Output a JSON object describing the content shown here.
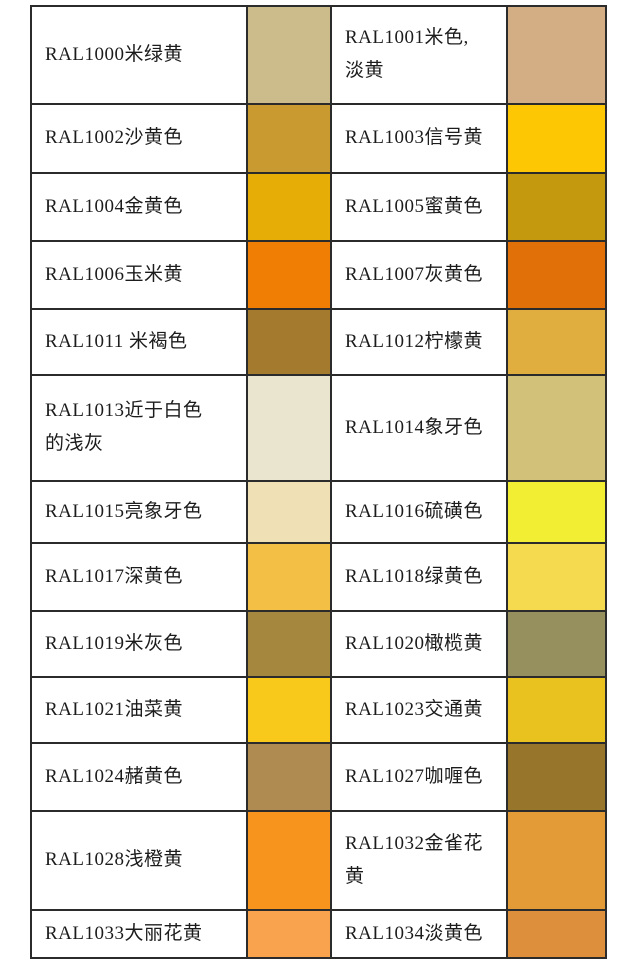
{
  "table": {
    "description_rows": [
      {
        "left_label": "RAL1000米绿黄",
        "left_color": "#CDBC8B",
        "right_label": "RAL1001米色,\n淡黄",
        "right_color": "#D3AE84"
      },
      {
        "left_label": "RAL1002沙黄色",
        "left_color": "#C89A2F",
        "right_label": "RAL1003信号黄",
        "right_color": "#FDC704"
      },
      {
        "left_label": "RAL1004金黄色",
        "left_color": "#E7AD07",
        "right_label": "RAL1005蜜黄色",
        "right_color": "#C5990D"
      },
      {
        "left_label": "RAL1006玉米黄",
        "left_color": "#F07E04",
        "right_label": "RAL1007灰黄色",
        "right_color": "#E17008"
      },
      {
        "left_label": "RAL1011 米褐色",
        "left_color": "#A47B2E",
        "right_label": "RAL1012柠檬黄",
        "right_color": "#DFAE3E"
      },
      {
        "left_label": "RAL1013近于白色\n的浅灰",
        "left_color": "#E9E5CF",
        "right_label": "RAL1014象牙色",
        "right_color": "#D2C178"
      },
      {
        "left_label": "RAL1015亮象牙色",
        "left_color": "#EFE0B5",
        "right_label": "RAL1016硫磺色",
        "right_color": "#F2EE33"
      },
      {
        "left_label": "RAL1017深黄色",
        "left_color": "#F3BF45",
        "right_label": "RAL1018绿黄色",
        "right_color": "#F5D94F"
      },
      {
        "left_label": "RAL1019米灰色",
        "left_color": "#A5883E",
        "right_label": "RAL1020橄榄黄",
        "right_color": "#95905E"
      },
      {
        "left_label": "RAL1021油菜黄",
        "left_color": "#F8C81B",
        "right_label": "RAL1023交通黄",
        "right_color": "#E9C220"
      },
      {
        "left_label": "RAL1024赭黄色",
        "left_color": "#B08B51",
        "right_label": "RAL1027咖喱色",
        "right_color": "#97752A"
      },
      {
        "left_label": "RAL1028浅橙黄",
        "left_color": "#F7941D",
        "right_label": "RAL1032金雀花\n黄",
        "right_color": "#E29B36"
      },
      {
        "left_label": "RAL1033大丽花黄",
        "left_color": "#F9A34F",
        "right_label": "RAL1034淡黄色",
        "right_color": "#DD8F3C"
      }
    ]
  },
  "colors": {
    "border": "#2b2b2b",
    "text": "#1c1c1c",
    "background": "#ffffff"
  }
}
